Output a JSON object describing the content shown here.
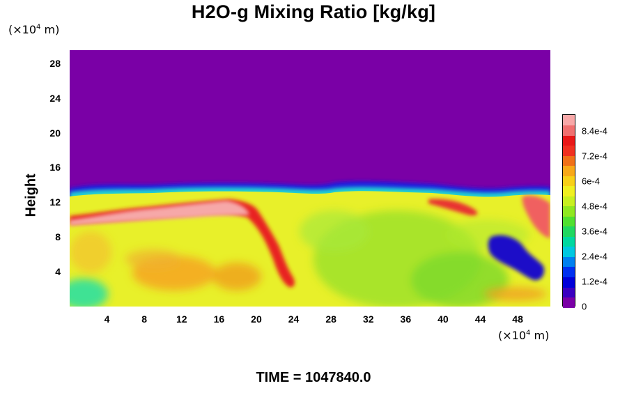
{
  "chart_data": {
    "type": "heatmap",
    "title": "H2O-g Mixing Ratio [kg/kg]",
    "ylabel": "Height",
    "xlabel": "",
    "x_unit": "(×10",
    "x_unit_exp": "4",
    "x_unit_tail": " m)",
    "y_unit": "(×10",
    "y_unit_exp": "4",
    "y_unit_tail": " m)",
    "xlim": [
      0,
      51.5
    ],
    "ylim": [
      0,
      29.5
    ],
    "x_ticks": [
      "4",
      "8",
      "12",
      "16",
      "20",
      "24",
      "28",
      "32",
      "36",
      "40",
      "44",
      "48"
    ],
    "y_ticks": [
      "4",
      "8",
      "12",
      "16",
      "20",
      "24",
      "28"
    ],
    "colorbar": {
      "min": 0,
      "max": 0.00092,
      "tick_labels": [
        "0",
        "1.2e-4",
        "2.4e-4",
        "3.6e-4",
        "4.8e-4",
        "6e-4",
        "7.2e-4",
        "8.4e-4"
      ],
      "tick_values": [
        0,
        0.00012,
        0.00024,
        0.00036,
        0.00048,
        0.0006,
        0.00072,
        0.00084
      ]
    },
    "field_description": {
      "upper_layer_value": 0,
      "upper_layer_base_height": 13.5,
      "lower_layer_typical_value": 0.00058,
      "moist_band_height": 12.0,
      "moist_band_x_range": [
        0,
        18.5
      ],
      "moist_band_value": 0.00092,
      "dry_pocket_x_range": [
        44,
        50
      ],
      "dry_pocket_value": 0.00012
    },
    "footer": "TIME = 1047840.0"
  }
}
